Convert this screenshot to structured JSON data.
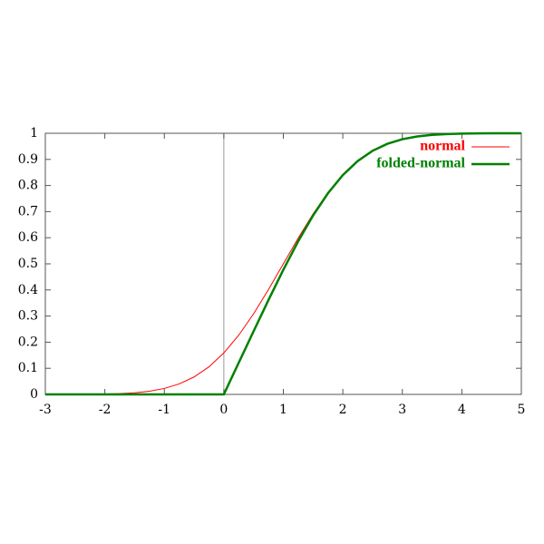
{
  "chart_data": {
    "type": "line",
    "x": [
      -3,
      -2.75,
      -2.5,
      -2.25,
      -2,
      -1.75,
      -1.5,
      -1.25,
      -1,
      -0.75,
      -0.5,
      -0.25,
      0,
      0.25,
      0.5,
      0.75,
      1,
      1.25,
      1.5,
      1.75,
      2,
      2.25,
      2.5,
      2.75,
      3,
      3.25,
      3.5,
      3.75,
      4,
      4.25,
      4.5,
      4.75,
      5
    ],
    "series": [
      {
        "name": "normal",
        "color": "#ff0000",
        "values": [
          0.0,
          0.0001,
          0.0002,
          0.0006,
          0.0013,
          0.003,
          0.0062,
          0.0122,
          0.0228,
          0.0401,
          0.0668,
          0.1056,
          0.1587,
          0.2266,
          0.3085,
          0.4013,
          0.5,
          0.5987,
          0.6915,
          0.7734,
          0.8413,
          0.8944,
          0.9332,
          0.9599,
          0.9772,
          0.9878,
          0.9938,
          0.997,
          0.9987,
          0.9994,
          0.9998,
          0.9999,
          1.0
        ]
      },
      {
        "name": "folded-normal",
        "color": "#008000",
        "values": [
          0,
          0,
          0,
          0,
          0,
          0,
          0,
          0,
          0,
          0,
          0,
          0,
          0,
          0.121,
          0.2417,
          0.3612,
          0.4772,
          0.5865,
          0.6853,
          0.7704,
          0.84,
          0.8938,
          0.933,
          0.9598,
          0.9772,
          0.9878,
          0.9938,
          0.997,
          0.9987,
          0.9994,
          0.9998,
          0.9999,
          1.0
        ]
      }
    ],
    "xlim": [
      -3,
      5
    ],
    "xticks": [
      -3,
      -2,
      -1,
      0,
      1,
      2,
      3,
      4,
      5
    ],
    "ylim": [
      0,
      1
    ],
    "yticks": [
      0,
      0.1,
      0.2,
      0.3,
      0.4,
      0.5,
      0.6,
      0.7,
      0.8,
      0.9,
      1
    ],
    "legend": "top-right"
  }
}
